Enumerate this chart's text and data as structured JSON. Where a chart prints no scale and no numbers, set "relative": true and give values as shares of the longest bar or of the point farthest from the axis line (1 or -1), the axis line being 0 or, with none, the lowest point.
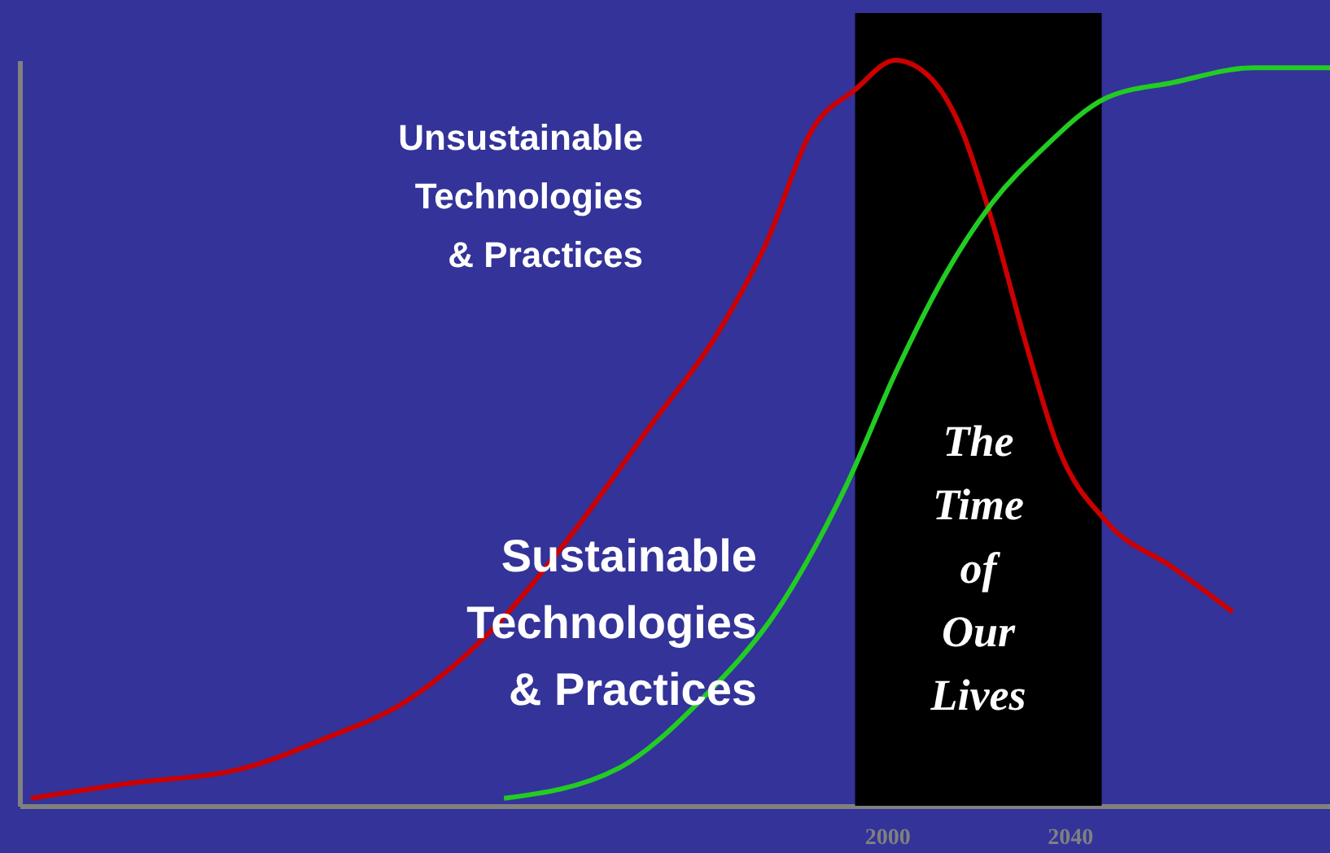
{
  "chart_data": {
    "type": "line",
    "relative": true,
    "xlim": [
      1810,
      2097
    ],
    "xticks": [
      2000,
      2040
    ],
    "grid": false,
    "marker": "none",
    "line_style": "solid",
    "series": [
      {
        "name": "Unsustainable\nTechnologies\n& Practices",
        "color": "#cc0000",
        "x": [
          1812.5,
          1833.9,
          1858.9,
          1876.8,
          1894.6,
          1912.5,
          1930.4,
          1948.2,
          1962.5,
          1973.2,
          1983.9,
          1992.9,
          2001.8,
          2008.9,
          2016.1,
          2023.2,
          2030.4,
          2037.5,
          2048.2,
          2062.5,
          2075.7
        ],
        "values": [
          0.01,
          0.03,
          0.05,
          0.09,
          0.14,
          0.23,
          0.36,
          0.51,
          0.63,
          0.75,
          0.91,
          0.96,
          1,
          0.98,
          0.91,
          0.78,
          0.62,
          0.48,
          0.38,
          0.32,
          0.26
        ]
      },
      {
        "name": "Sustainable\nTechnologies\n& Practices",
        "color": "#22cc22",
        "x": [
          1916.1,
          1941.1,
          1958.9,
          1976.8,
          1991.1,
          2001.8,
          2012.5,
          2023.2,
          2033.9,
          2048.2,
          2062.5,
          2080.4,
          2097
        ],
        "values": [
          0.01,
          0.05,
          0.14,
          0.27,
          0.43,
          0.58,
          0.71,
          0.81,
          0.88,
          0.95,
          0.97,
          0.99,
          0.99
        ]
      }
    ],
    "bands": [
      {
        "axis": "x",
        "from": 1993,
        "to": 2047,
        "label": "The\nTime\nof\nOur\nLives",
        "color": "#000000"
      }
    ]
  }
}
